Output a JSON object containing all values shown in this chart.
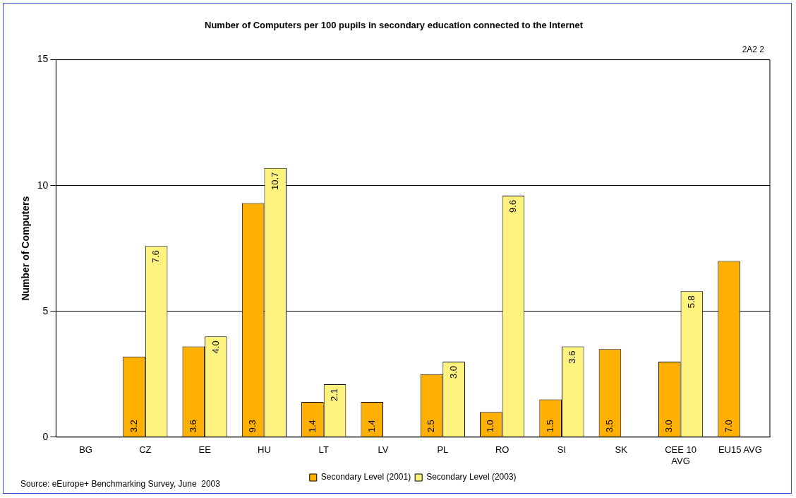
{
  "chart_data": {
    "type": "bar",
    "title": "Number of Computers per 100 pupils in secondary education connected to the Internet",
    "ylabel": "Number of Computers",
    "categories": [
      "BG",
      "CZ",
      "EE",
      "HU",
      "LT",
      "LV",
      "PL",
      "RO",
      "SI",
      "SK",
      "CEE 10 AVG",
      "EU15 AVG"
    ],
    "series": [
      {
        "name": "Secondary Level (2001)",
        "color": "#ffb000",
        "values": [
          null,
          3.2,
          3.6,
          9.3,
          1.4,
          1.4,
          2.5,
          1.0,
          1.5,
          3.5,
          3.0,
          7.0
        ],
        "value_labels": [
          null,
          "3.2",
          "3.6",
          "9.3",
          "1.4",
          "1.4",
          "2.5",
          "1.0",
          "1.5",
          "3.5",
          "3.0",
          "7.0"
        ]
      },
      {
        "name": "Secondary Level (2003)",
        "color": "#fff380",
        "values": [
          null,
          7.6,
          4.0,
          10.7,
          2.1,
          null,
          3.0,
          9.6,
          3.6,
          null,
          5.8,
          null
        ],
        "value_labels": [
          null,
          "7.6",
          "4.0",
          "10.7",
          "2.1",
          null,
          "3.0",
          "9.6",
          "3.6",
          null,
          "5.8",
          null
        ]
      }
    ],
    "ylim": [
      0,
      15
    ],
    "yticks": [
      0,
      5,
      10,
      15
    ],
    "grid": "y",
    "legend": "bottom",
    "annotations": [
      "2A2 2",
      "Source: eEurope+ Benchmarking Survey, June  2003"
    ]
  }
}
